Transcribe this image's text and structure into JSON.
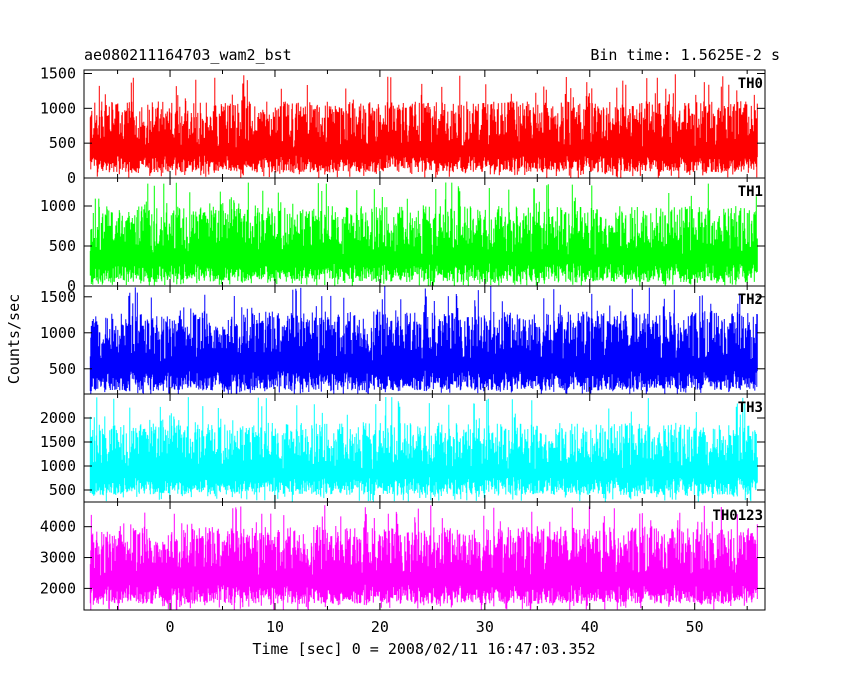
{
  "header": {
    "title": "ae080211164703_wam2_bst",
    "bin_time": "Bin time: 1.5625E-2 s"
  },
  "ylabel": "Counts/sec",
  "xlabel": "Time [sec] 0 = 2008/02/11 16:47:03.352",
  "chart_data": [
    {
      "type": "line",
      "name": "TH0",
      "color": "#ff0000",
      "xlim": [
        -8.2,
        56.7
      ],
      "ylim": [
        0,
        1550
      ],
      "yticks": [
        0,
        500,
        1000,
        1500
      ],
      "ytick_labels": [
        "0",
        "500",
        "1000",
        "1500"
      ],
      "data_x_range": [
        -7.6,
        56.0
      ],
      "baseline": 80,
      "typical_range": [
        80,
        1100
      ],
      "peak": 1500
    },
    {
      "type": "line",
      "name": "TH1",
      "color": "#00ff00",
      "xlim": [
        -8.2,
        56.7
      ],
      "ylim": [
        0,
        1350
      ],
      "yticks": [
        0,
        500,
        1000
      ],
      "ytick_labels": [
        "0",
        "500",
        "1000"
      ],
      "data_x_range": [
        -7.6,
        56.0
      ],
      "baseline": 50,
      "typical_range": [
        50,
        1000
      ],
      "peak": 1300
    },
    {
      "type": "line",
      "name": "TH2",
      "color": "#0000ff",
      "xlim": [
        -8.2,
        56.7
      ],
      "ylim": [
        150,
        1650
      ],
      "yticks": [
        500,
        1000,
        1500
      ],
      "ytick_labels": [
        "500",
        "1000",
        "1500"
      ],
      "data_x_range": [
        -7.6,
        56.0
      ],
      "baseline": 200,
      "typical_range": [
        200,
        1300
      ],
      "peak": 1650
    },
    {
      "type": "line",
      "name": "TH3",
      "color": "#00ffff",
      "xlim": [
        -8.2,
        56.7
      ],
      "ylim": [
        250,
        2500
      ],
      "yticks": [
        500,
        1000,
        1500,
        2000
      ],
      "ytick_labels": [
        "500",
        "1000",
        "1500",
        "2000"
      ],
      "data_x_range": [
        -7.6,
        56.0
      ],
      "baseline": 400,
      "typical_range": [
        400,
        1900
      ],
      "peak": 2450
    },
    {
      "type": "line",
      "name": "TH0123",
      "color": "#ff00ff",
      "xlim": [
        -8.2,
        56.7
      ],
      "ylim": [
        1300,
        4800
      ],
      "yticks": [
        2000,
        3000,
        4000
      ],
      "ytick_labels": [
        "2000",
        "3000",
        "4000"
      ],
      "data_x_range": [
        -7.6,
        56.0
      ],
      "baseline": 1500,
      "typical_range": [
        1500,
        4000
      ],
      "peak": 4700
    }
  ],
  "x_axis": {
    "ticks": [
      0,
      10,
      20,
      30,
      40,
      50
    ],
    "tick_labels": [
      "0",
      "10",
      "20",
      "30",
      "40",
      "50"
    ]
  }
}
